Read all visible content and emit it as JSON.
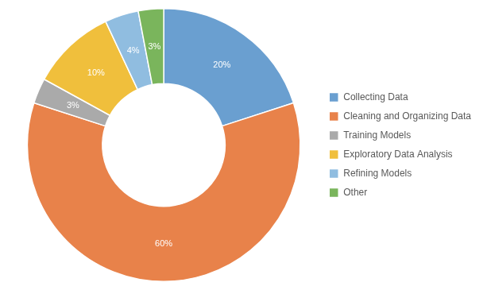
{
  "chart_data": {
    "type": "doughnut",
    "categories": [
      "Collecting Data",
      "Cleaning and Organizing Data",
      "Training Models",
      "Exploratory Data Analysis",
      "Refining Models",
      "Other"
    ],
    "values": [
      20,
      60,
      3,
      10,
      4,
      3
    ],
    "value_labels": [
      "20%",
      "60%",
      "3%",
      "10%",
      "4%",
      "3%"
    ],
    "colors": [
      "#6A9FD0",
      "#E8824A",
      "#AAAAAA",
      "#F0BF3C",
      "#90BDE0",
      "#7AB55C"
    ],
    "data_labels": true,
    "legend": "right"
  }
}
